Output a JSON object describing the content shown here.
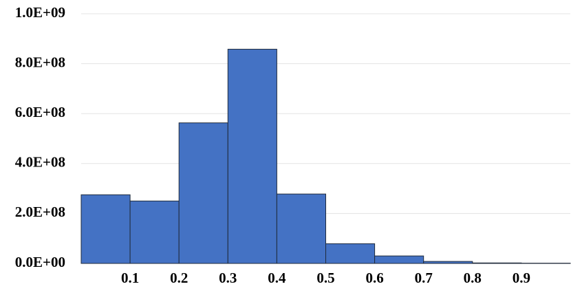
{
  "chart_data": {
    "type": "histogram",
    "bins": [
      0,
      0.1,
      0.2,
      0.3,
      0.4,
      0.5,
      0.6,
      0.7,
      0.8,
      0.9,
      1.0
    ],
    "counts": [
      275000000,
      250000000,
      563000000,
      858000000,
      278000000,
      79000000,
      30000000,
      8000000,
      2000000,
      1000000
    ],
    "color": "#4472c4",
    "xlim": [
      0,
      1.0
    ],
    "xticks": [
      0.1,
      0.2,
      0.3,
      0.4,
      0.5,
      0.6,
      0.7,
      0.8,
      0.9
    ],
    "ylim": [
      0,
      1000000000
    ],
    "yticks": [
      {
        "value": 0,
        "label": "0.0E+00"
      },
      {
        "value": 200000000,
        "label": "2.0E+08"
      },
      {
        "value": 400000000,
        "label": "4.0E+08"
      },
      {
        "value": 600000000,
        "label": "6.0E+08"
      },
      {
        "value": 800000000,
        "label": "8.0E+08"
      },
      {
        "value": 1000000000,
        "label": "1.0E+09"
      }
    ],
    "grid": true
  }
}
